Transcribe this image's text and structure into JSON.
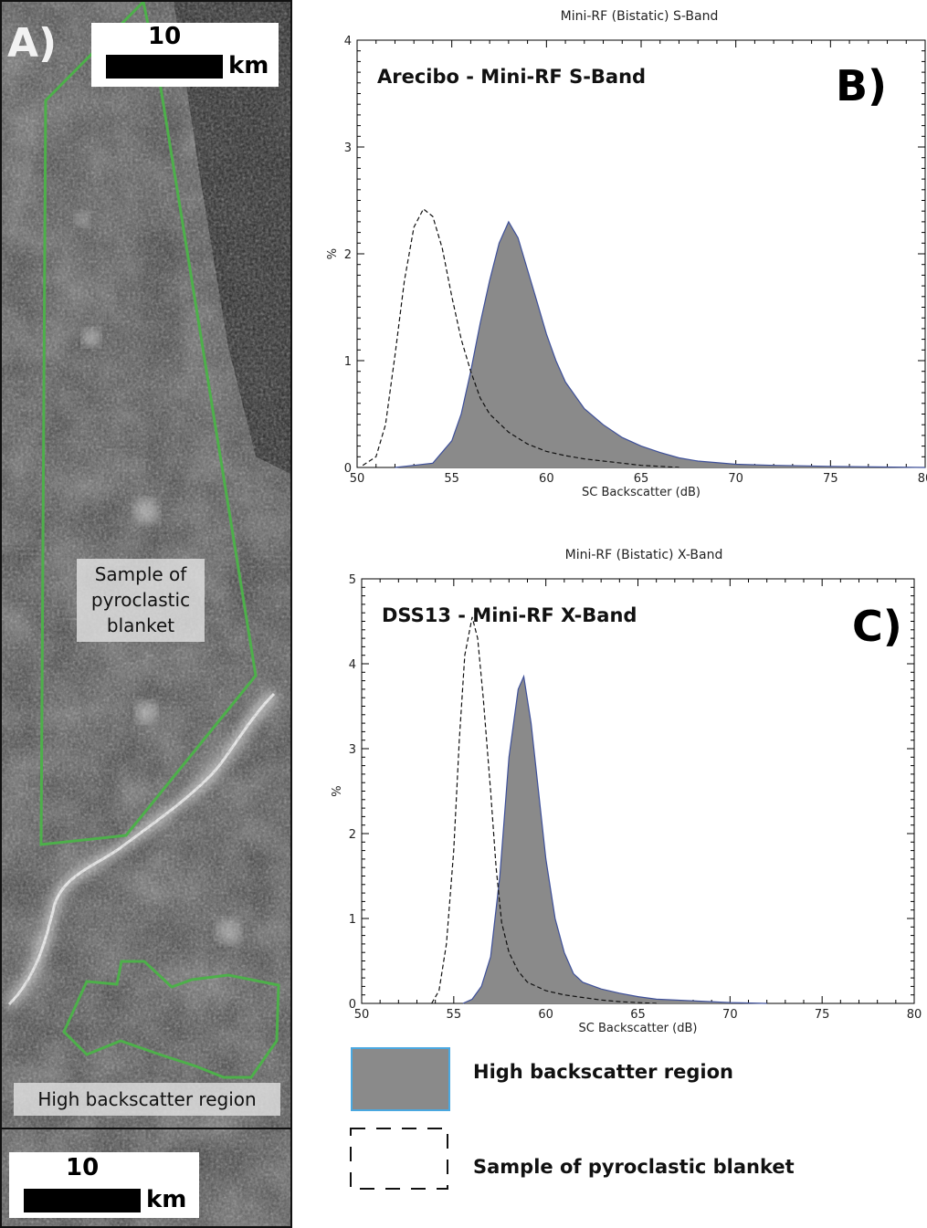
{
  "panel_a": {
    "letter": "A)",
    "scale_top": {
      "value": "10",
      "unit": "km"
    },
    "scale_bottom": {
      "value": "10",
      "unit": "km"
    },
    "label_pyroclastic": [
      "Sample of",
      "pyroclastic",
      "blanket"
    ],
    "label_high": "High backscatter region",
    "outline_color": "#4db04a"
  },
  "legend": {
    "high_label": "High backscatter region",
    "pyro_label": "Sample of pyroclastic blanket",
    "fill_color": "#8a8a8a",
    "border_color": "#4aa8e0"
  },
  "chart_data": [
    {
      "type": "area",
      "panel_letter": "B)",
      "title": "Mini-RF (Bistatic) S-Band",
      "inner_title": "Arecibo - Mini-RF S-Band",
      "xlabel": "SC Backscatter (dB)",
      "ylabel": "%",
      "xlim": [
        50,
        80
      ],
      "ylim": [
        0,
        4
      ],
      "xticks": [
        50,
        55,
        60,
        65,
        70,
        75,
        80
      ],
      "yticks": [
        0,
        1,
        2,
        3,
        4
      ],
      "series": [
        {
          "name": "High backscatter region",
          "style": "filled",
          "x": [
            52,
            53,
            54,
            55,
            55.5,
            56,
            56.5,
            57,
            57.5,
            58,
            58.5,
            59,
            59.5,
            60,
            60.5,
            61,
            62,
            63,
            64,
            65,
            66,
            67,
            68,
            70,
            72,
            75,
            80
          ],
          "y": [
            0.0,
            0.02,
            0.04,
            0.25,
            0.5,
            0.9,
            1.35,
            1.75,
            2.1,
            2.3,
            2.15,
            1.85,
            1.55,
            1.25,
            1.0,
            0.8,
            0.55,
            0.4,
            0.28,
            0.2,
            0.14,
            0.09,
            0.06,
            0.03,
            0.02,
            0.01,
            0.0
          ]
        },
        {
          "name": "Sample of pyroclastic blanket",
          "style": "dashed",
          "x": [
            50.3,
            51,
            51.5,
            52,
            52.5,
            53,
            53.5,
            54,
            54.5,
            55,
            55.5,
            56,
            56.5,
            57,
            58,
            59,
            60,
            61,
            62,
            63,
            64,
            65,
            66,
            67
          ],
          "y": [
            0.02,
            0.1,
            0.4,
            1.05,
            1.75,
            2.25,
            2.42,
            2.35,
            2.05,
            1.6,
            1.2,
            0.9,
            0.65,
            0.5,
            0.33,
            0.22,
            0.15,
            0.11,
            0.08,
            0.06,
            0.04,
            0.02,
            0.01,
            0.0
          ]
        }
      ]
    },
    {
      "type": "area",
      "panel_letter": "C)",
      "title": "Mini-RF (Bistatic) X-Band",
      "inner_title": "DSS13 - Mini-RF X-Band",
      "xlabel": "SC Backscatter (dB)",
      "ylabel": "%",
      "xlim": [
        50,
        80
      ],
      "ylim": [
        0,
        5
      ],
      "xticks": [
        50,
        55,
        60,
        65,
        70,
        75,
        80
      ],
      "yticks": [
        0,
        1,
        2,
        3,
        4,
        5
      ],
      "series": [
        {
          "name": "High backscatter region",
          "style": "filled",
          "x": [
            55.5,
            56,
            56.5,
            57,
            57.5,
            58,
            58.5,
            58.8,
            59.2,
            59.6,
            60,
            60.5,
            61,
            61.5,
            62,
            63,
            64,
            65,
            66,
            68,
            70,
            72
          ],
          "y": [
            0.0,
            0.05,
            0.2,
            0.55,
            1.5,
            2.9,
            3.7,
            3.85,
            3.3,
            2.5,
            1.7,
            1.0,
            0.6,
            0.35,
            0.25,
            0.17,
            0.12,
            0.08,
            0.05,
            0.03,
            0.01,
            0.0
          ]
        },
        {
          "name": "Sample of pyroclastic blanket",
          "style": "dashed",
          "x": [
            53.8,
            54.2,
            54.6,
            55,
            55.3,
            55.6,
            56,
            56.3,
            56.6,
            57,
            57.3,
            57.6,
            58,
            58.5,
            59,
            60,
            61,
            62,
            63,
            64,
            65,
            66
          ],
          "y": [
            0.0,
            0.15,
            0.7,
            1.8,
            3.1,
            4.1,
            4.55,
            4.3,
            3.6,
            2.5,
            1.6,
            0.95,
            0.6,
            0.38,
            0.25,
            0.15,
            0.1,
            0.07,
            0.04,
            0.02,
            0.01,
            0.0
          ]
        }
      ]
    }
  ]
}
